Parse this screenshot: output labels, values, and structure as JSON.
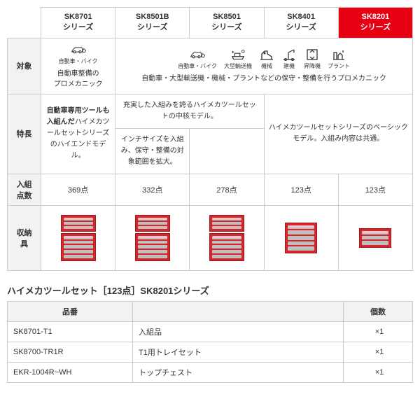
{
  "columns": [
    {
      "line1": "SK8701",
      "line2": "シリーズ",
      "highlight": false
    },
    {
      "line1": "SK8501B",
      "line2": "シリーズ",
      "highlight": false
    },
    {
      "line1": "SK8501",
      "line2": "シリーズ",
      "highlight": false
    },
    {
      "line1": "SK8401",
      "line2": "シリーズ",
      "highlight": false
    },
    {
      "line1": "SK8201",
      "line2": "シリーズ",
      "highlight": true
    }
  ],
  "rows": {
    "target": {
      "label": "対象",
      "col1": {
        "icons": [
          {
            "id": "car",
            "label": "自動車・バイク"
          }
        ],
        "text": "自動車整備の\nプロメカニック"
      },
      "merged": {
        "icons": [
          {
            "id": "car",
            "label": "自動車・バイク"
          },
          {
            "id": "ship",
            "label": "大型輸送機"
          },
          {
            "id": "robot",
            "label": "機械"
          },
          {
            "id": "crane",
            "label": "建機"
          },
          {
            "id": "lift",
            "label": "昇降機"
          },
          {
            "id": "plant",
            "label": "プラント"
          }
        ],
        "text": "自動車・大型輸送機・機械・プラントなどの保守・整備を行うプロメカニック"
      }
    },
    "feature": {
      "label": "特長",
      "col1": "<b>自動車専用ツールも入組んだ</b>ハイメカツールセットシリーズのハイエンドモデル。",
      "col23_top": "充実した入組みを誇るハイメカツールセットの中核モデル。",
      "col2_bottom": "インチサイズを入組み、保守・整備の対象範囲を拡大。",
      "col45": "ハイメカツールセットシリーズのベーシックモデル。入組み内容は共通。"
    },
    "count": {
      "label": "入組\n点数",
      "values": [
        "369点",
        "332点",
        "278点",
        "123点",
        "123点"
      ]
    },
    "storage": {
      "label": "収納\n具",
      "sizes": [
        "L",
        "L",
        "L",
        "M",
        "S"
      ]
    }
  },
  "section_title": "ハイメカツールセット［123点］SK8201シリーズ",
  "parts_table": {
    "headers": {
      "part": "品番",
      "name": "",
      "qty": "個数"
    },
    "rows": [
      {
        "part": "SK8701-T1",
        "name": "入組品",
        "qty": "×1"
      },
      {
        "part": "SK8700-TR1R",
        "name": "T1用トレイセット",
        "qty": "×1"
      },
      {
        "part": "EKR-1004R~WH",
        "name": "トップチェスト",
        "qty": "×1"
      }
    ]
  }
}
